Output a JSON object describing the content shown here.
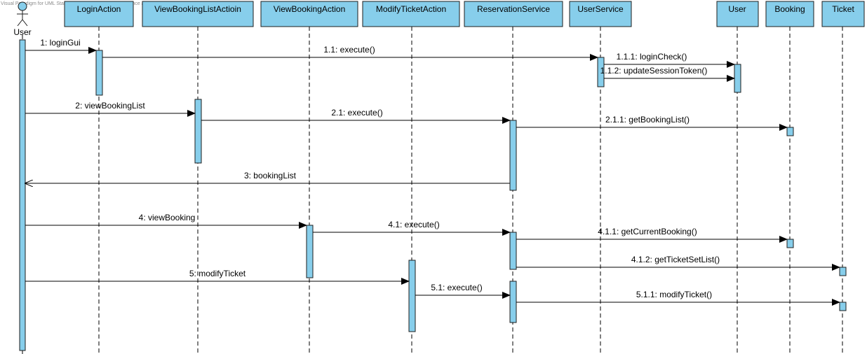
{
  "watermark": "Visual Paradigm for UML Standard Edition(University of Science and Technology)",
  "colors": {
    "box_fill": "#87CEEB",
    "box_stroke": "#1d1d1d",
    "activation_fill": "#87CEEB",
    "line": "#000000"
  },
  "actor": {
    "name": "User"
  },
  "lifelines": [
    {
      "id": "loginAction",
      "name": "LoginAction"
    },
    {
      "id": "viewBookingList",
      "name": "ViewBookingListActioin"
    },
    {
      "id": "viewBooking",
      "name": "ViewBookingAction"
    },
    {
      "id": "modifyTicket",
      "name": "ModifyTicketAction"
    },
    {
      "id": "reservation",
      "name": "ReservationService"
    },
    {
      "id": "userService",
      "name": "UserService"
    },
    {
      "id": "userEntity",
      "name": "User"
    },
    {
      "id": "booking",
      "name": "Booking"
    },
    {
      "id": "ticket",
      "name": "Ticket"
    }
  ],
  "messages": [
    {
      "label": "1: loginGui",
      "from": "actor",
      "to": "loginAction",
      "kind": "call"
    },
    {
      "label": "1.1: execute()",
      "from": "loginAction",
      "to": "userService",
      "kind": "call"
    },
    {
      "label": "1.1.1: loginCheck()",
      "from": "userService",
      "to": "userEntity",
      "kind": "call"
    },
    {
      "label": "1.1.2: updateSessionToken()",
      "from": "userService",
      "to": "userEntity",
      "kind": "call"
    },
    {
      "label": "2: viewBookingList",
      "from": "actor",
      "to": "viewBookingList",
      "kind": "call"
    },
    {
      "label": "2.1: execute()",
      "from": "viewBookingList",
      "to": "reservation",
      "kind": "call"
    },
    {
      "label": "2.1.1: getBookingList()",
      "from": "reservation",
      "to": "booking",
      "kind": "call"
    },
    {
      "label": "3: bookingList",
      "from": "reservation",
      "to": "actor",
      "kind": "return"
    },
    {
      "label": "4: viewBooking",
      "from": "actor",
      "to": "viewBooking",
      "kind": "call"
    },
    {
      "label": "4.1: execute()",
      "from": "viewBooking",
      "to": "reservation",
      "kind": "call"
    },
    {
      "label": "4.1.1: getCurrentBooking()",
      "from": "reservation",
      "to": "booking",
      "kind": "call"
    },
    {
      "label": "4.1.2: getTicketSetList()",
      "from": "reservation",
      "to": "ticket",
      "kind": "call"
    },
    {
      "label": "5: modifyTicket",
      "from": "actor",
      "to": "modifyTicket",
      "kind": "call"
    },
    {
      "label": "5.1: execute()",
      "from": "modifyTicket",
      "to": "reservation",
      "kind": "call"
    },
    {
      "label": "5.1.1: modifyTicket()",
      "from": "reservation",
      "to": "ticket",
      "kind": "call"
    }
  ]
}
